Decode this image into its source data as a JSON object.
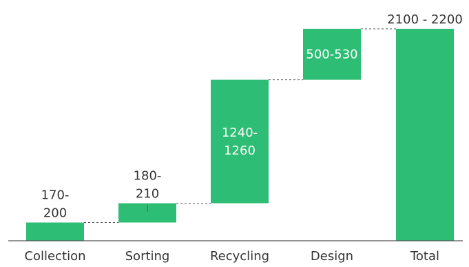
{
  "chart_data": {
    "type": "bar",
    "subtype": "waterfall",
    "title": "",
    "xlabel": "",
    "ylabel": "",
    "ylim": [
      0,
      2200
    ],
    "grid": false,
    "legend": "none",
    "bar_color": "#2dbd74",
    "connector_color": "#555555",
    "categories": [
      "Collection",
      "Sorting",
      "Recycling",
      "Design",
      "Total"
    ],
    "bars": [
      {
        "category": "Collection",
        "start": 0,
        "end": 185,
        "label_lines": [
          "170-",
          "200"
        ],
        "label_position": "above"
      },
      {
        "category": "Sorting",
        "start": 185,
        "end": 380,
        "label_lines": [
          "180-",
          "210"
        ],
        "label_position": "above"
      },
      {
        "category": "Recycling",
        "start": 380,
        "end": 1630,
        "label_lines": [
          "1240-",
          "1260"
        ],
        "label_position": "inside"
      },
      {
        "category": "Design",
        "start": 1630,
        "end": 2145,
        "label_lines": [
          "500-530"
        ],
        "label_position": "inside"
      },
      {
        "category": "Total",
        "start": 0,
        "end": 2145,
        "label_lines": [
          "2100 - 2200"
        ],
        "label_position": "above"
      }
    ]
  }
}
